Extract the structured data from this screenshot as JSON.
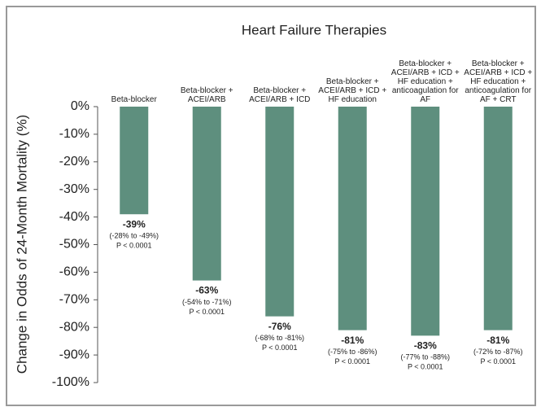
{
  "chart_data": {
    "type": "bar",
    "title": "Heart Failure Therapies",
    "ylabel": "Change in Odds of 24-Month Mortality (%)",
    "categories": [
      "Beta-blocker",
      "Beta-blocker + ACEI/ARB",
      "Beta-blocker + ACEI/ARB + ICD",
      "Beta-blocker + ACEI/ARB + ICD + HF education",
      "Beta-blocker + ACEI/ARB + ICD + HF education + anticoagulation for AF",
      "Beta-blocker + ACEI/ARB + ICD + HF education + anticoagulation for AF + CRT"
    ],
    "values": [
      -39,
      -63,
      -76,
      -81,
      -83,
      -81
    ],
    "value_labels": [
      "-39%",
      "-63%",
      "-76%",
      "-81%",
      "-83%",
      "-81%"
    ],
    "ci_labels": [
      "(-28% to -49%)",
      "(-54% to -71%)",
      "(-68% to -81%)",
      "(-75% to -86%)",
      "(-77% to -88%)",
      "(-72% to -87%)"
    ],
    "p_labels": [
      "P < 0.0001",
      "P < 0.0001",
      "P < 0.0001",
      "P < 0.0001",
      "P < 0.0001",
      "P < 0.0001"
    ],
    "color": "#5e8f7e",
    "ylim": [
      -100,
      0
    ],
    "yticks": [
      {
        "value": 0,
        "label": "0%"
      },
      {
        "value": -10,
        "label": "-10%"
      },
      {
        "value": -20,
        "label": "-20%"
      },
      {
        "value": -30,
        "label": "-30%"
      },
      {
        "value": -40,
        "label": "-40%"
      },
      {
        "value": -50,
        "label": "-50%"
      },
      {
        "value": -60,
        "label": "-60%"
      },
      {
        "value": -70,
        "label": "-70%"
      },
      {
        "value": -80,
        "label": "-80%"
      },
      {
        "value": -90,
        "label": "-90%"
      },
      {
        "value": -100,
        "label": "-100%"
      }
    ],
    "grid": false
  }
}
